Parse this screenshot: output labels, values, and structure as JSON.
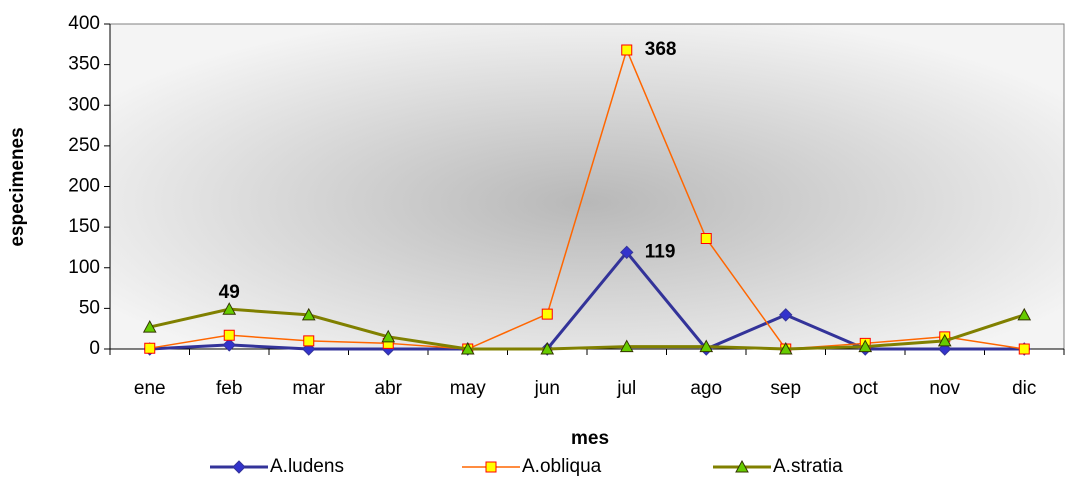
{
  "chart_data": {
    "type": "line",
    "x_label": "mes",
    "y_label": "especimenes",
    "categories": [
      "ene",
      "feb",
      "mar",
      "abr",
      "may",
      "jun",
      "jul",
      "ago",
      "sep",
      "oct",
      "nov",
      "dic"
    ],
    "ylim": [
      0,
      400
    ],
    "yticks": [
      0,
      50,
      100,
      150,
      200,
      250,
      300,
      350,
      400
    ],
    "legend": "bottom",
    "series": [
      {
        "name": "A.ludens",
        "color": "#333399",
        "marker": "diamond",
        "marker_fill": "#3333cc",
        "values": [
          0,
          5,
          0,
          0,
          0,
          0,
          119,
          0,
          42,
          0,
          0,
          0
        ],
        "labels_at": [
          6
        ]
      },
      {
        "name": "A.obliqua",
        "color": "#ff6600",
        "marker": "square",
        "marker_fill": "#ffff00",
        "values": [
          1,
          17,
          10,
          7,
          0,
          43,
          368,
          136,
          0,
          7,
          15,
          0
        ],
        "labels_at": [
          6
        ]
      },
      {
        "name": "A.stratia",
        "color": "#808000",
        "marker": "triangle",
        "marker_fill": "#66cc00",
        "values": [
          27,
          49,
          42,
          15,
          0,
          0,
          3,
          3,
          0,
          3,
          10,
          42
        ],
        "labels_at": [
          1
        ]
      }
    ]
  }
}
